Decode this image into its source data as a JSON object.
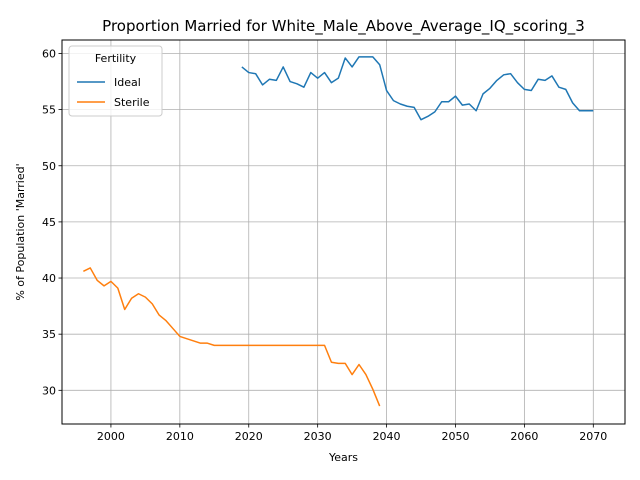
{
  "chart_data": {
    "type": "line",
    "title": "Proportion Married for White_Male_Above_Average_IQ_scoring_3",
    "xlabel": "Years",
    "ylabel": "% of Population 'Married'",
    "xlim": [
      1992.9,
      2074.6
    ],
    "ylim": [
      27.0,
      61.2
    ],
    "x_ticks": [
      2000,
      2010,
      2020,
      2030,
      2040,
      2050,
      2060,
      2070
    ],
    "y_ticks": [
      30,
      35,
      40,
      45,
      50,
      55,
      60
    ],
    "grid": true,
    "legend": {
      "title": "Fertility",
      "placement": "top-left"
    },
    "series": [
      {
        "name": "Ideal",
        "color": "#1f77b4",
        "x": [
          2019,
          2020,
          2021,
          2022,
          2023,
          2024,
          2025,
          2026,
          2027,
          2028,
          2029,
          2030,
          2031,
          2032,
          2033,
          2034,
          2035,
          2036,
          2037,
          2038,
          2039,
          2040,
          2041,
          2042,
          2043,
          2044,
          2045,
          2046,
          2047,
          2048,
          2049,
          2050,
          2051,
          2052,
          2053,
          2054,
          2055,
          2056,
          2057,
          2058,
          2059,
          2060,
          2061,
          2062,
          2063,
          2064,
          2065,
          2066,
          2067,
          2068,
          2069,
          2070
        ],
        "y": [
          58.8,
          58.3,
          58.2,
          57.2,
          57.7,
          57.6,
          58.8,
          57.5,
          57.3,
          57.0,
          58.3,
          57.8,
          58.3,
          57.4,
          57.8,
          59.6,
          58.8,
          59.7,
          59.7,
          59.7,
          59.0,
          56.7,
          55.8,
          55.5,
          55.3,
          55.2,
          54.1,
          54.4,
          54.8,
          55.7,
          55.7,
          56.2,
          55.4,
          55.5,
          54.9,
          56.4,
          56.9,
          57.6,
          58.1,
          58.2,
          57.4,
          56.8,
          56.7,
          57.7,
          57.6,
          58.0,
          57.0,
          56.8,
          55.6,
          54.9,
          54.9,
          54.9
        ]
      },
      {
        "name": "Sterile",
        "color": "#ff7f0e",
        "x": [
          1996,
          1997,
          1998,
          1999,
          2000,
          2001,
          2002,
          2003,
          2004,
          2005,
          2006,
          2007,
          2008,
          2009,
          2010,
          2011,
          2012,
          2013,
          2014,
          2015,
          2016,
          2017,
          2018,
          2019,
          2020,
          2021,
          2022,
          2023,
          2024,
          2025,
          2026,
          2027,
          2028,
          2029,
          2030,
          2031,
          2032,
          2033,
          2034,
          2035,
          2036,
          2037,
          2038,
          2039
        ],
        "y": [
          40.6,
          40.9,
          39.8,
          39.3,
          39.7,
          39.1,
          37.2,
          38.2,
          38.6,
          38.3,
          37.7,
          36.7,
          36.2,
          35.5,
          34.8,
          34.6,
          34.4,
          34.2,
          34.2,
          34.0,
          34.0,
          34.0,
          34.0,
          34.0,
          34.0,
          34.0,
          34.0,
          34.0,
          34.0,
          34.0,
          34.0,
          34.0,
          34.0,
          34.0,
          34.0,
          34.0,
          32.5,
          32.4,
          32.4,
          31.4,
          32.3,
          31.4,
          30.1,
          28.6
        ]
      }
    ]
  }
}
